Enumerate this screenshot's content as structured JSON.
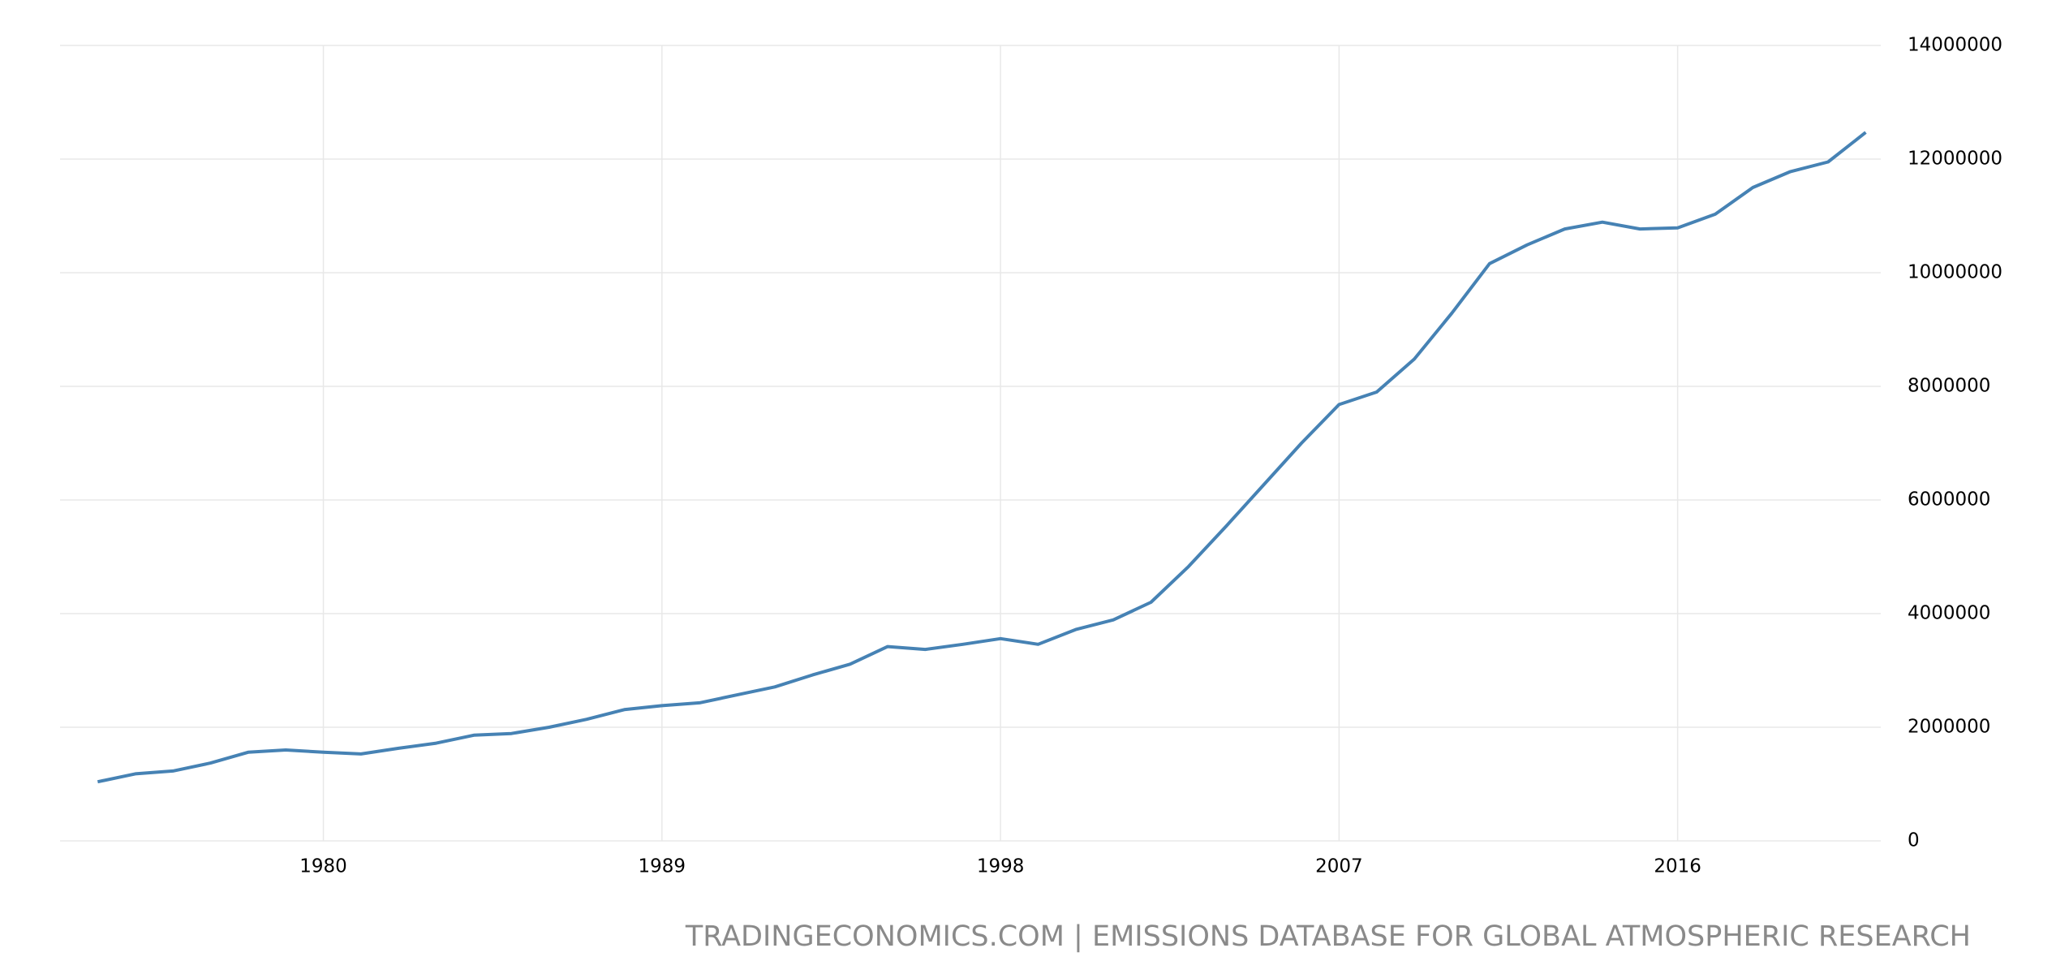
{
  "chart_data": {
    "type": "line",
    "source": "TRADINGECONOMICS.COM | EMISSIONS DATABASE FOR GLOBAL ATMOSPHERIC RESEARCH",
    "x": [
      1974,
      1975,
      1976,
      1977,
      1978,
      1979,
      1980,
      1981,
      1982,
      1983,
      1984,
      1985,
      1986,
      1987,
      1988,
      1989,
      1990,
      1991,
      1992,
      1993,
      1994,
      1995,
      1996,
      1997,
      1998,
      1999,
      2000,
      2001,
      2002,
      2003,
      2004,
      2005,
      2006,
      2007,
      2008,
      2009,
      2010,
      2011,
      2012,
      2013,
      2014,
      2015,
      2016,
      2017,
      2018,
      2019,
      2020,
      2021
    ],
    "series": [
      {
        "color": "#4682b4",
        "values": [
          1040000,
          1180000,
          1230000,
          1370000,
          1560000,
          1600000,
          1560000,
          1530000,
          1630000,
          1720000,
          1860000,
          1890000,
          2000000,
          2140000,
          2310000,
          2380000,
          2430000,
          2570000,
          2710000,
          2920000,
          3110000,
          3420000,
          3370000,
          3460000,
          3560000,
          3460000,
          3720000,
          3890000,
          4200000,
          4830000,
          5540000,
          6270000,
          7000000,
          7680000,
          7900000,
          8480000,
          9290000,
          10160000,
          10490000,
          10770000,
          10890000,
          10770000,
          10790000,
          11030000,
          11500000,
          11780000,
          11950000,
          12470000
        ]
      }
    ],
    "xlim": [
      1973,
      2021.4
    ],
    "xticks": [
      1980,
      1989,
      1998,
      2007,
      2016
    ],
    "ylim": [
      0,
      14000000
    ],
    "yticks": [
      0,
      2000000,
      4000000,
      6000000,
      8000000,
      10000000,
      12000000,
      14000000
    ],
    "grid": true
  }
}
